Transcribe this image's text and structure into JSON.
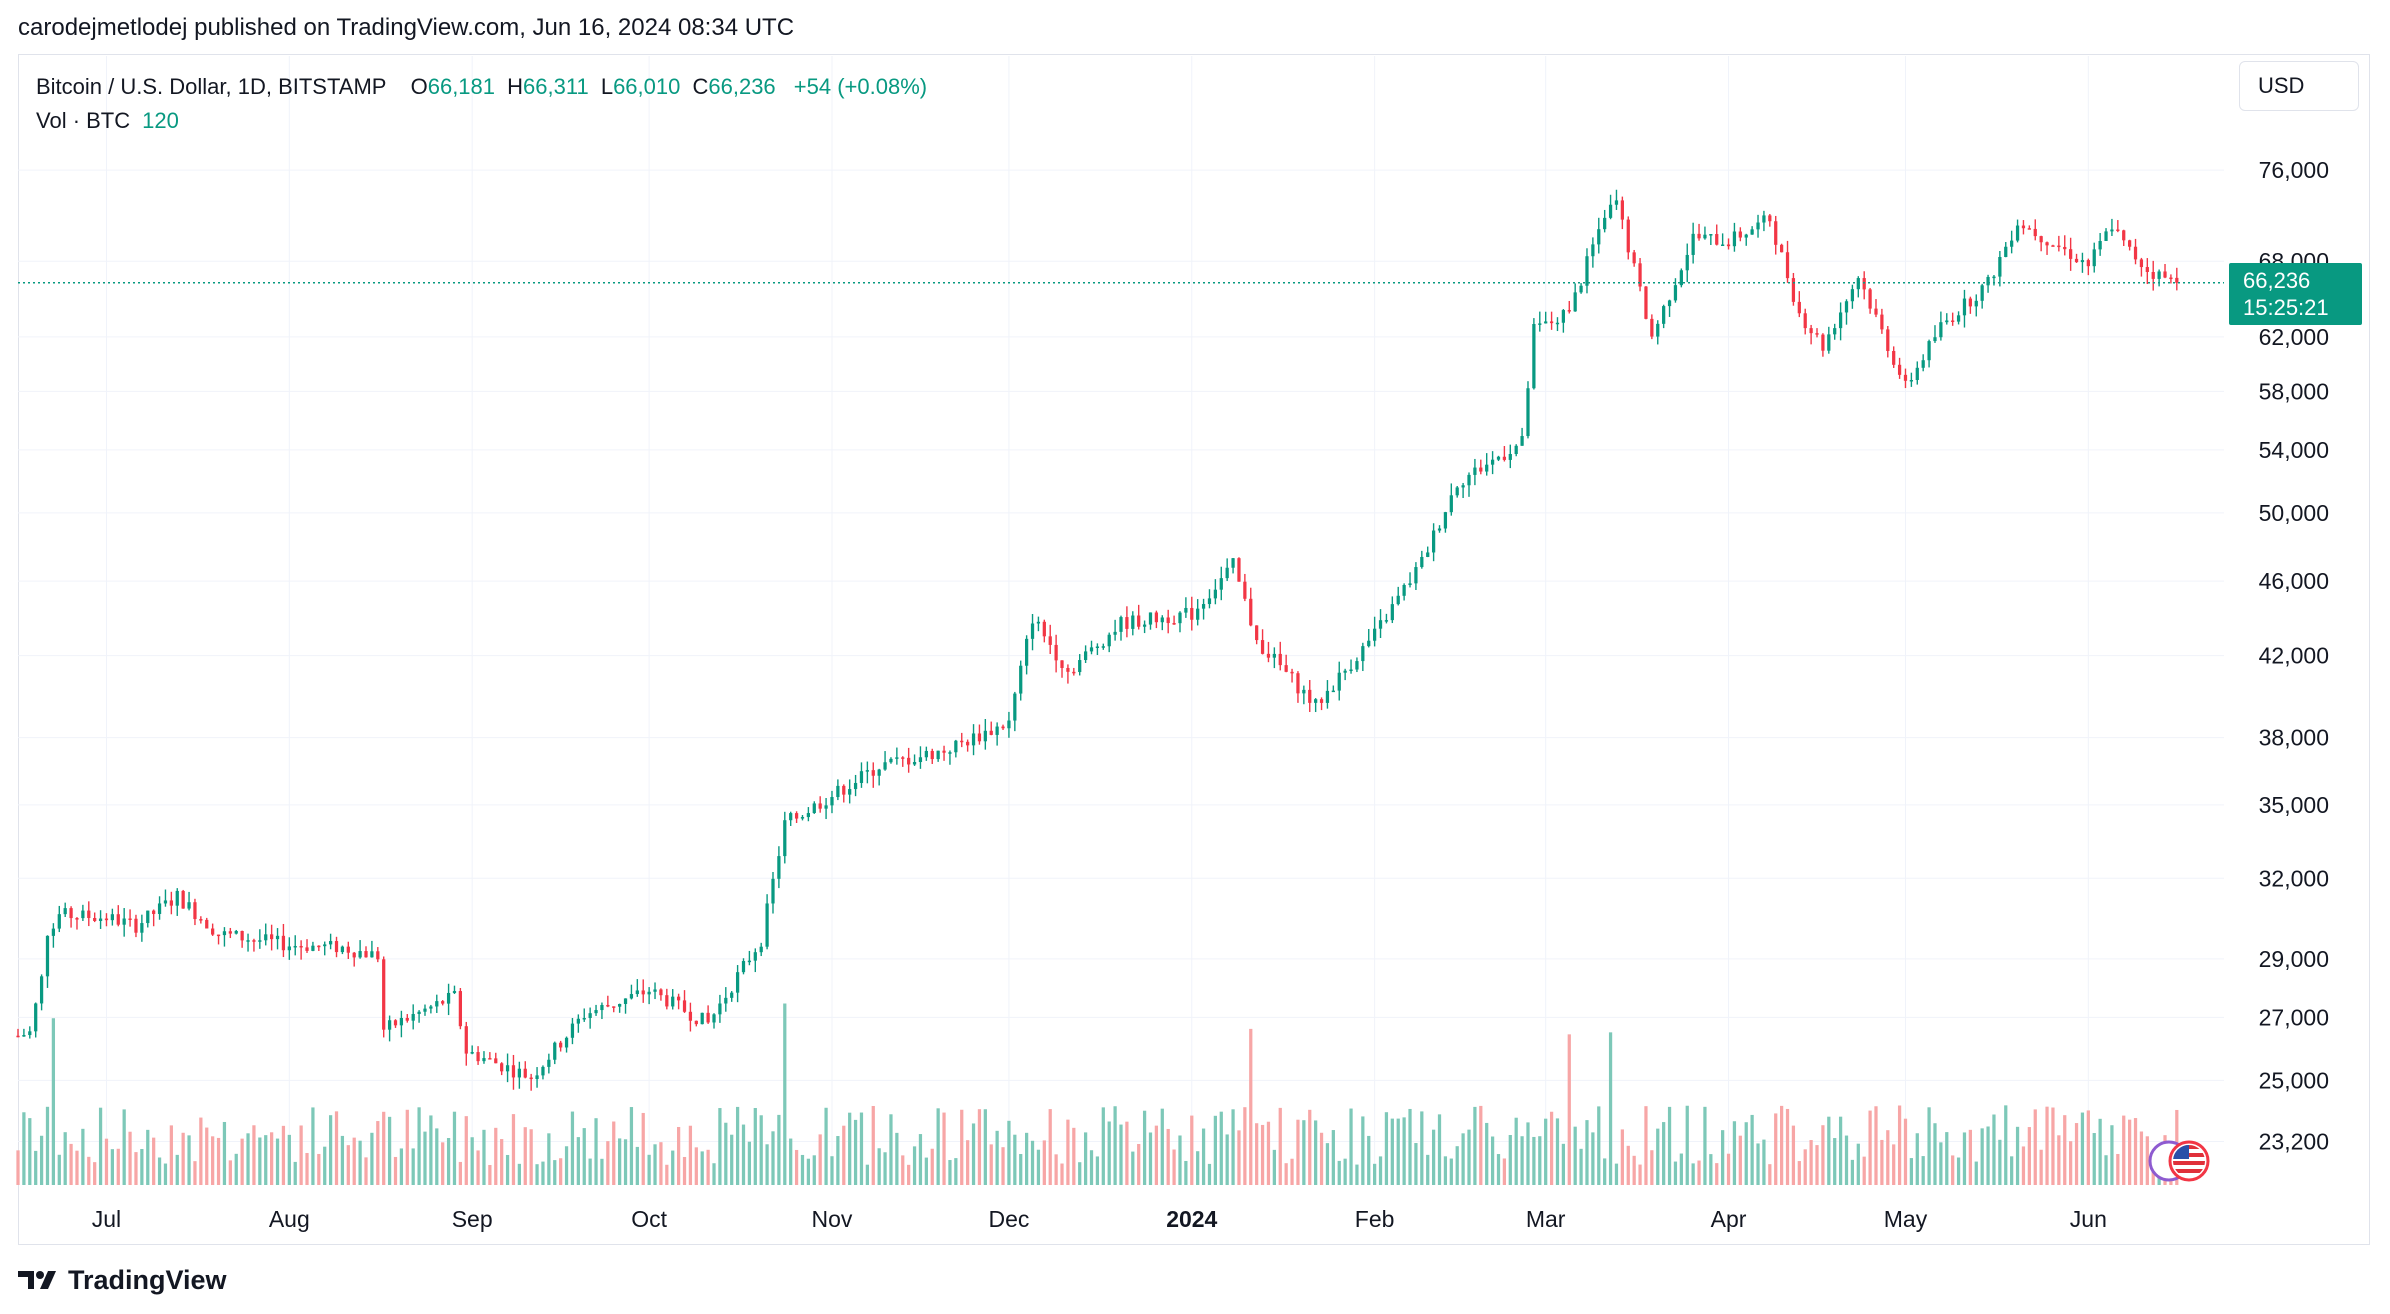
{
  "header": {
    "published_text": "carodejmetlodej published on TradingView.com, Jun 16, 2024 08:34 UTC"
  },
  "legend": {
    "symbol": "Bitcoin / U.S. Dollar, 1D, BITSTAMP",
    "open_label": "O",
    "open_value": "66,181",
    "high_label": "H",
    "high_value": "66,311",
    "low_label": "L",
    "low_value": "66,010",
    "close_label": "C",
    "close_value": "66,236",
    "change": "+54 (+0.08%)",
    "volume_label": "Vol · BTC",
    "volume_value": "120"
  },
  "currency_button": "USD",
  "price_tag": {
    "price": "66,236",
    "countdown": "15:25:21"
  },
  "branding": {
    "name": "TradingView"
  },
  "colors": {
    "up": "#089981",
    "down": "#f23645",
    "vol_up": "#7dc8b8",
    "vol_down": "#f7a6a6"
  },
  "chart_data": {
    "type": "candlestick",
    "symbol": "Bitcoin / U.S. Dollar, 1D, BITSTAMP",
    "y_axis": {
      "scale": "log",
      "range": [
        22000,
        81000
      ],
      "ticks": [
        "76,000",
        "68,000",
        "62,000",
        "58,000",
        "54,000",
        "50,000",
        "46,000",
        "42,000",
        "38,000",
        "35,000",
        "32,000",
        "29,000",
        "27,000",
        "25,000",
        "23,200"
      ]
    },
    "x_axis": {
      "range": [
        "2023-06-16",
        "2024-06-24"
      ],
      "ticks": [
        {
          "label": "Jul",
          "date": "2023-07-01"
        },
        {
          "label": "Aug",
          "date": "2023-08-01"
        },
        {
          "label": "Sep",
          "date": "2023-09-01"
        },
        {
          "label": "Oct",
          "date": "2023-10-01"
        },
        {
          "label": "Nov",
          "date": "2023-11-01"
        },
        {
          "label": "Dec",
          "date": "2023-12-01"
        },
        {
          "label": "2024",
          "date": "2024-01-01",
          "bold": true
        },
        {
          "label": "Feb",
          "date": "2024-02-01"
        },
        {
          "label": "Mar",
          "date": "2024-03-01"
        },
        {
          "label": "Apr",
          "date": "2024-04-01"
        },
        {
          "label": "May",
          "date": "2024-05-01"
        },
        {
          "label": "Jun",
          "date": "2024-06-01"
        }
      ]
    },
    "last_price": 66236,
    "grid": true,
    "close_anchors": [
      {
        "date": "2023-06-16",
        "close": 26400
      },
      {
        "date": "2023-06-18",
        "close": 26500
      },
      {
        "date": "2023-06-20",
        "close": 28300
      },
      {
        "date": "2023-06-21",
        "close": 30000
      },
      {
        "date": "2023-06-23",
        "close": 30600
      },
      {
        "date": "2023-07-01",
        "close": 30500
      },
      {
        "date": "2023-07-06",
        "close": 30200
      },
      {
        "date": "2023-07-13",
        "close": 31300
      },
      {
        "date": "2023-07-20",
        "close": 29900
      },
      {
        "date": "2023-08-01",
        "close": 29500
      },
      {
        "date": "2023-08-10",
        "close": 29400
      },
      {
        "date": "2023-08-16",
        "close": 29100
      },
      {
        "date": "2023-08-17",
        "close": 26600
      },
      {
        "date": "2023-08-29",
        "close": 27700
      },
      {
        "date": "2023-08-31",
        "close": 25900
      },
      {
        "date": "2023-09-11",
        "close": 25100
      },
      {
        "date": "2023-09-20",
        "close": 27100
      },
      {
        "date": "2023-10-01",
        "close": 27900
      },
      {
        "date": "2023-10-11",
        "close": 26800
      },
      {
        "date": "2023-10-16",
        "close": 28400
      },
      {
        "date": "2023-10-20",
        "close": 29700
      },
      {
        "date": "2023-10-23",
        "close": 33000
      },
      {
        "date": "2023-10-24",
        "close": 34200
      },
      {
        "date": "2023-11-01",
        "close": 35400
      },
      {
        "date": "2023-11-09",
        "close": 36700
      },
      {
        "date": "2023-11-20",
        "close": 37400
      },
      {
        "date": "2023-12-01",
        "close": 38700
      },
      {
        "date": "2023-12-05",
        "close": 44000
      },
      {
        "date": "2023-12-11",
        "close": 41200
      },
      {
        "date": "2023-12-20",
        "close": 43700
      },
      {
        "date": "2024-01-01",
        "close": 44200
      },
      {
        "date": "2024-01-08",
        "close": 46900
      },
      {
        "date": "2024-01-12",
        "close": 42800
      },
      {
        "date": "2024-01-22",
        "close": 39500
      },
      {
        "date": "2024-02-01",
        "close": 43100
      },
      {
        "date": "2024-02-09",
        "close": 47100
      },
      {
        "date": "2024-02-15",
        "close": 51900
      },
      {
        "date": "2024-02-26",
        "close": 54500
      },
      {
        "date": "2024-02-28",
        "close": 62500
      },
      {
        "date": "2024-03-05",
        "close": 63800
      },
      {
        "date": "2024-03-11",
        "close": 72100
      },
      {
        "date": "2024-03-13",
        "close": 73100
      },
      {
        "date": "2024-03-19",
        "close": 62000
      },
      {
        "date": "2024-03-26",
        "close": 70000
      },
      {
        "date": "2024-04-01",
        "close": 69700
      },
      {
        "date": "2024-04-08",
        "close": 71600
      },
      {
        "date": "2024-04-13",
        "close": 63800
      },
      {
        "date": "2024-04-17",
        "close": 61300
      },
      {
        "date": "2024-04-23",
        "close": 66800
      },
      {
        "date": "2024-05-01",
        "close": 58300
      },
      {
        "date": "2024-05-07",
        "close": 62800
      },
      {
        "date": "2024-05-15",
        "close": 66200
      },
      {
        "date": "2024-05-20",
        "close": 71400
      },
      {
        "date": "2024-06-01",
        "close": 67700
      },
      {
        "date": "2024-06-05",
        "close": 71100
      },
      {
        "date": "2024-06-07",
        "close": 69400
      },
      {
        "date": "2024-06-11",
        "close": 67300
      },
      {
        "date": "2024-06-13",
        "close": 66800
      },
      {
        "date": "2024-06-16",
        "close": 66236
      }
    ],
    "volume_anchors": [
      {
        "date": "2023-06-22",
        "volume": "very-high"
      },
      {
        "date": "2023-10-24",
        "volume": "very-high"
      },
      {
        "date": "2024-01-11",
        "volume": "high"
      },
      {
        "date": "2024-03-05",
        "volume": "very-high"
      },
      {
        "date": "2024-03-12",
        "volume": "very-high"
      }
    ]
  }
}
